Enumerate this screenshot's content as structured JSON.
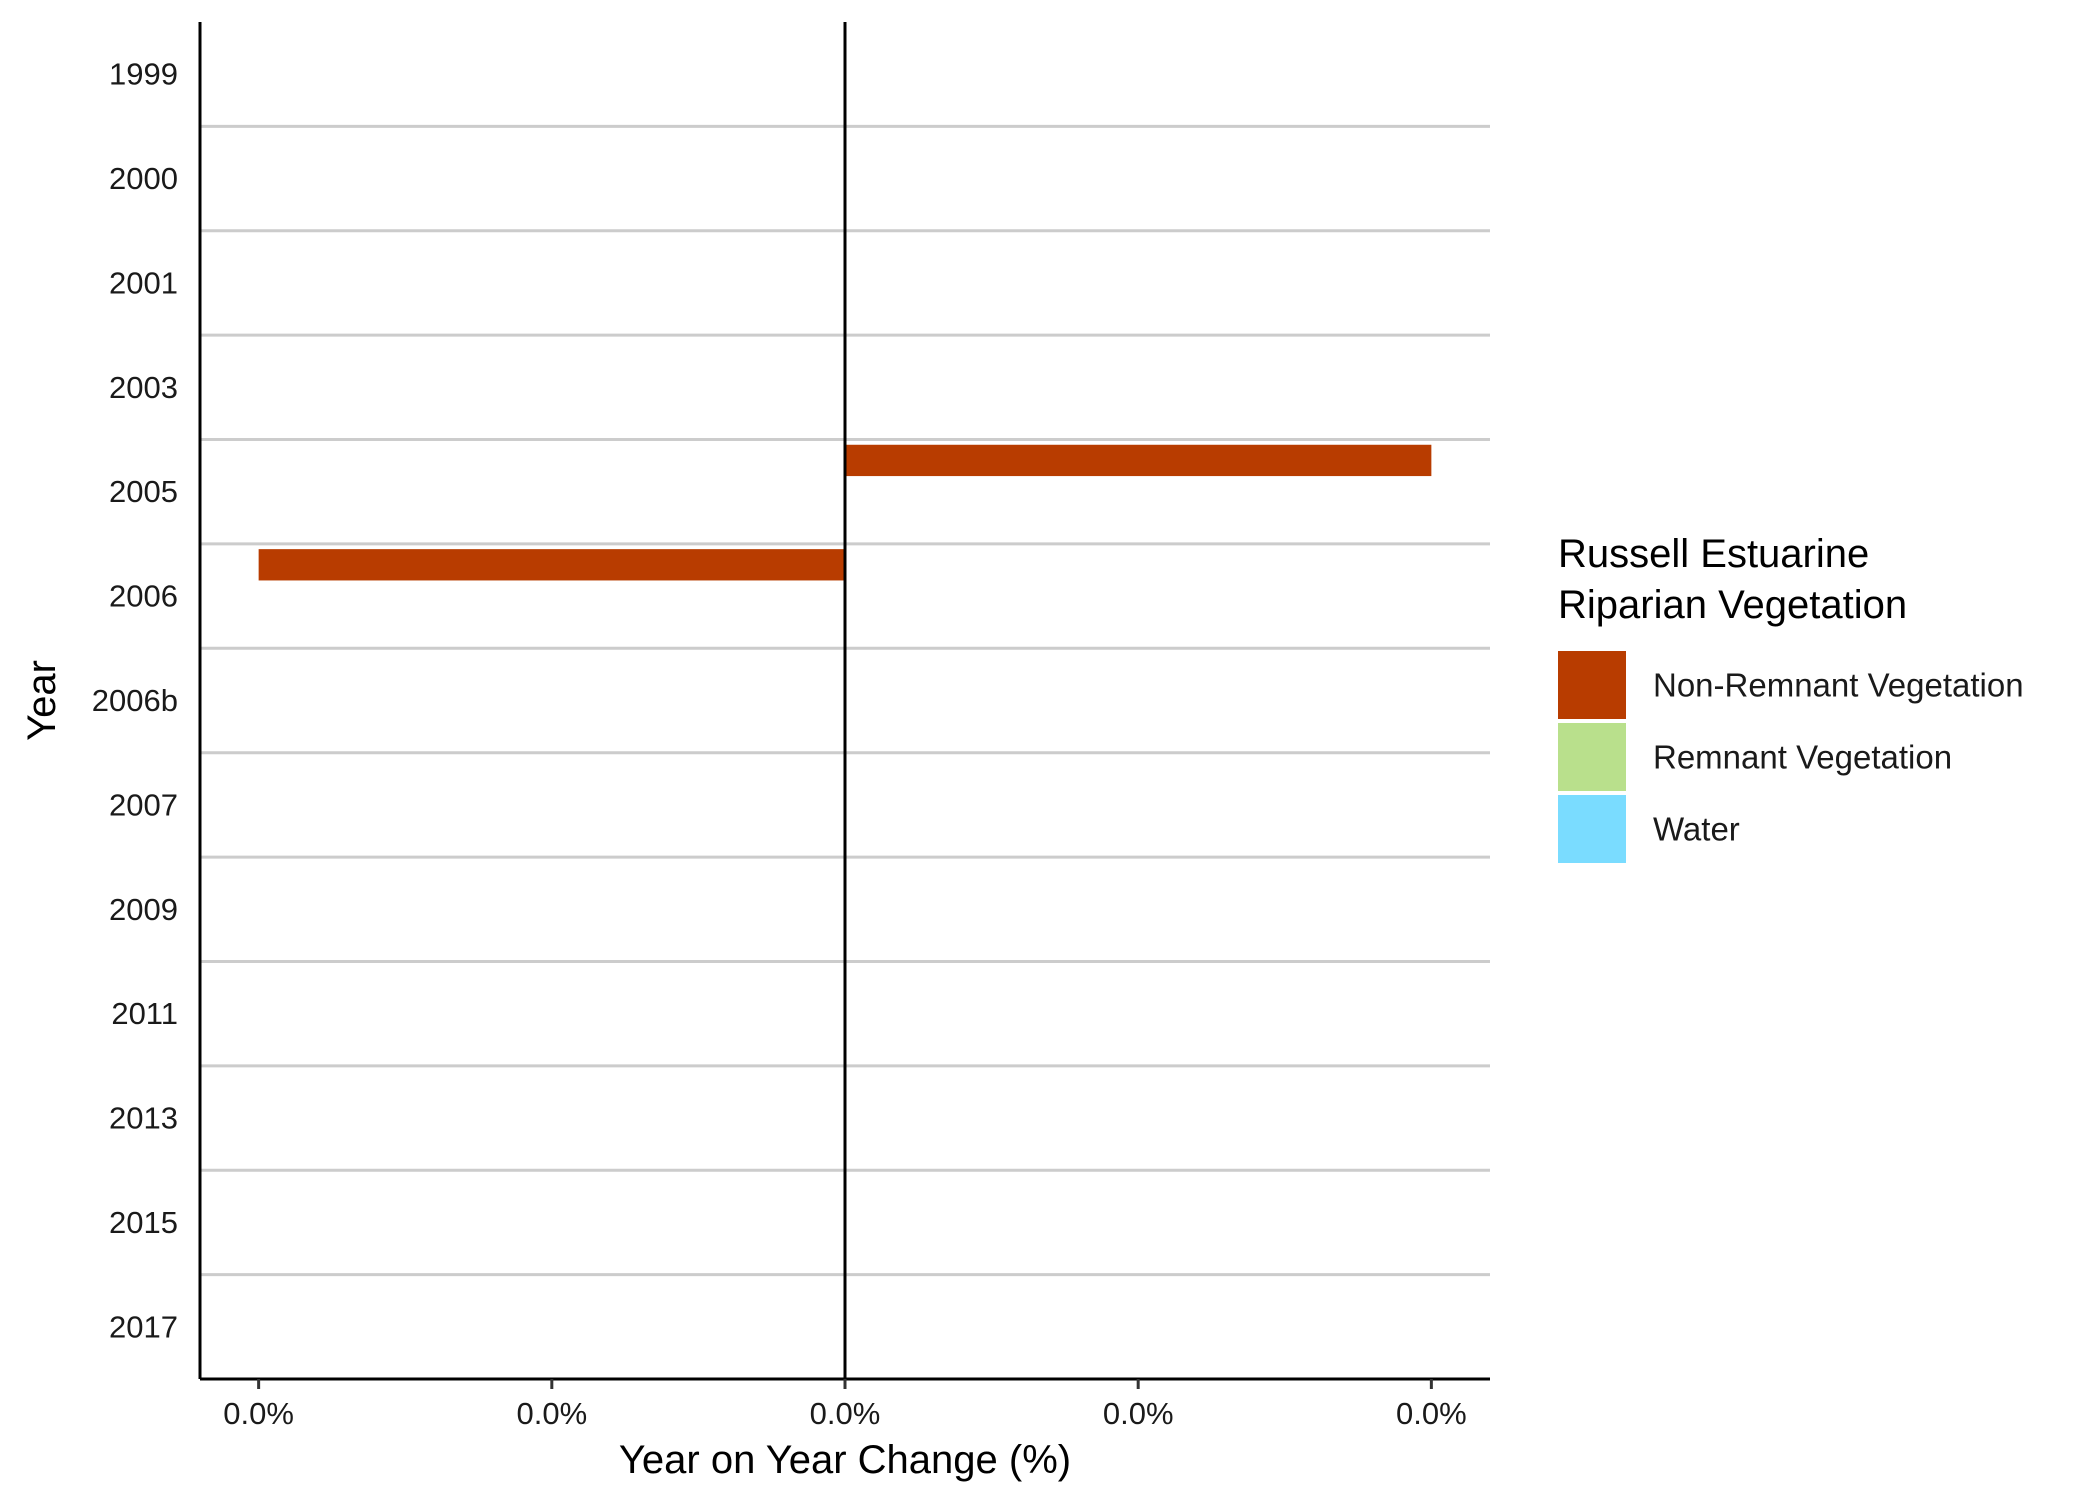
{
  "chart_data": {
    "type": "bar",
    "orientation": "horizontal",
    "categories": [
      "1999",
      "2000",
      "2001",
      "2003",
      "2005",
      "2006",
      "2006b",
      "2007",
      "2009",
      "2011",
      "2013",
      "2015",
      "2017"
    ],
    "series": [
      {
        "name": "Non-Remnant Vegetation",
        "color": "#B83C00",
        "values": [
          0,
          0,
          0,
          0,
          0.0001,
          -0.0001,
          0,
          0,
          0,
          0,
          0,
          0,
          0
        ]
      },
      {
        "name": "Remnant Vegetation",
        "color": "#B9E08C",
        "values": [
          0,
          0,
          0,
          0,
          0,
          0,
          0,
          0,
          0,
          0,
          0,
          0,
          0
        ]
      },
      {
        "name": "Water",
        "color": "#7ADCFF",
        "values": [
          0,
          0,
          0,
          0,
          0,
          0,
          0,
          0,
          0,
          0,
          0,
          0,
          0
        ]
      }
    ],
    "xlabel": "Year on Year Change (%)",
    "ylabel": "Year",
    "xlim": [
      -0.00011,
      0.00011
    ],
    "xticks": [
      -0.0001,
      -5e-05,
      0,
      5e-05,
      0.0001
    ],
    "xtick_labels": [
      "0.0%",
      "0.0%",
      "0.0%",
      "0.0%",
      "0.0%"
    ],
    "grid": "horizontal lines between categories",
    "legend": {
      "title_lines": [
        "Russell Estuarine",
        "Riparian Vegetation"
      ],
      "position": "right"
    }
  }
}
